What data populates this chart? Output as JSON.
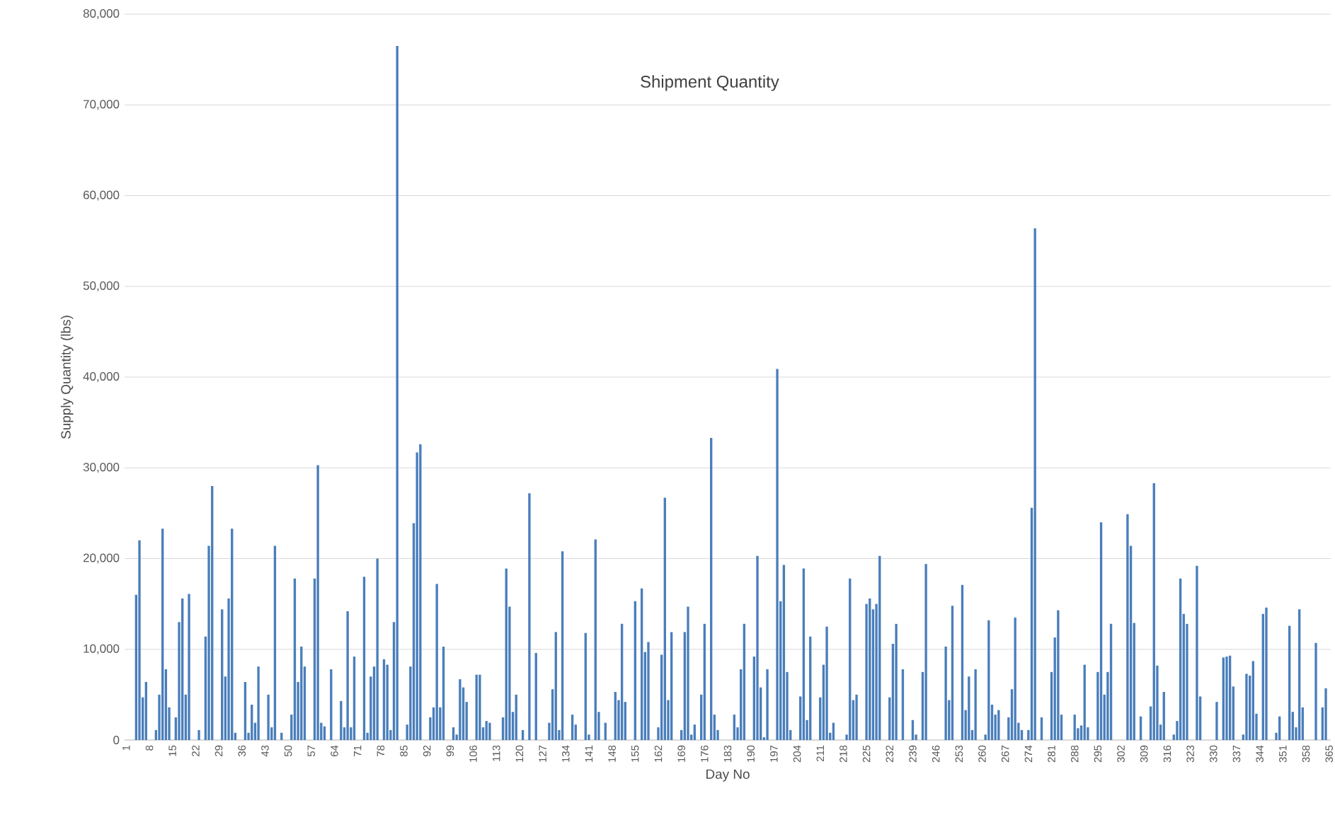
{
  "chart_data": {
    "type": "bar",
    "title": "Shipment Quantity",
    "xlabel": "Day No",
    "ylabel": "Supply Quantity (lbs)",
    "color": "#4a7ebb",
    "grid": "y",
    "ylim": [
      0,
      80000
    ],
    "yticks": [
      0,
      {
        "value": 10000,
        "label": "10,000"
      },
      {
        "value": 20000,
        "label": "20,000"
      },
      {
        "value": 30000,
        "label": "30,000"
      },
      {
        "value": 40000,
        "label": "40,000"
      },
      {
        "value": 50000,
        "label": "50,000"
      },
      {
        "value": 60000,
        "label": "60,000"
      },
      {
        "value": 70000,
        "label": "70,000"
      },
      {
        "value": 80000,
        "label": "80,000"
      }
    ],
    "categories": [
      "1",
      null,
      null,
      null,
      null,
      null,
      null,
      "8",
      null,
      null,
      null,
      null,
      null,
      null,
      "15",
      null,
      null,
      null,
      null,
      null,
      null,
      "22",
      null,
      null,
      null,
      null,
      null,
      null,
      "29",
      null,
      null,
      null,
      null,
      null,
      null,
      "36",
      null,
      null,
      null,
      null,
      null,
      null,
      "43",
      null,
      null,
      null,
      null,
      null,
      null,
      "50",
      null,
      null,
      null,
      null,
      null,
      null,
      "57",
      null,
      null,
      null,
      null,
      null,
      null,
      "64",
      null,
      null,
      null,
      null,
      null,
      null,
      "71",
      null,
      null,
      null,
      null,
      null,
      null,
      "78",
      null,
      null,
      null,
      null,
      null,
      null,
      "85",
      null,
      null,
      null,
      null,
      null,
      null,
      "92",
      null,
      null,
      null,
      null,
      null,
      null,
      "99",
      null,
      null,
      null,
      null,
      null,
      null,
      "106",
      null,
      null,
      null,
      null,
      null,
      null,
      "113",
      null,
      null,
      null,
      null,
      null,
      null,
      "120",
      null,
      null,
      null,
      null,
      null,
      null,
      "127",
      null,
      null,
      null,
      null,
      null,
      null,
      "134",
      null,
      null,
      null,
      null,
      null,
      null,
      "141",
      null,
      null,
      null,
      null,
      null,
      null,
      "148",
      null,
      null,
      null,
      null,
      null,
      null,
      "155",
      null,
      null,
      null,
      null,
      null,
      null,
      "162",
      null,
      null,
      null,
      null,
      null,
      null,
      "169",
      null,
      null,
      null,
      null,
      null,
      null,
      "176",
      null,
      null,
      null,
      null,
      null,
      null,
      "183",
      null,
      null,
      null,
      null,
      null,
      null,
      "190",
      null,
      null,
      null,
      null,
      null,
      null,
      "197",
      null,
      null,
      null,
      null,
      null,
      null,
      "204",
      null,
      null,
      null,
      null,
      null,
      null,
      "211",
      null,
      null,
      null,
      null,
      null,
      null,
      "218",
      null,
      null,
      null,
      null,
      null,
      null,
      "225",
      null,
      null,
      null,
      null,
      null,
      null,
      "232",
      null,
      null,
      null,
      null,
      null,
      null,
      "239",
      null,
      null,
      null,
      null,
      null,
      null,
      "246",
      null,
      null,
      null,
      null,
      null,
      null,
      "253",
      null,
      null,
      null,
      null,
      null,
      null,
      "260",
      null,
      null,
      null,
      null,
      null,
      null,
      "267",
      null,
      null,
      null,
      null,
      null,
      null,
      "274",
      null,
      null,
      null,
      null,
      null,
      null,
      "281",
      null,
      null,
      null,
      null,
      null,
      null,
      "288",
      null,
      null,
      null,
      null,
      null,
      null,
      "295",
      null,
      null,
      null,
      null,
      null,
      null,
      "302",
      null,
      null,
      null,
      null,
      null,
      null,
      "309",
      null,
      null,
      null,
      null,
      null,
      null,
      "316",
      null,
      null,
      null,
      null,
      null,
      null,
      "323",
      null,
      null,
      null,
      null,
      null,
      null,
      "330",
      null,
      null,
      null,
      null,
      null,
      null,
      "337",
      null,
      null,
      null,
      null,
      null,
      null,
      "344",
      null,
      null,
      null,
      null,
      null,
      null,
      "351",
      null,
      null,
      null,
      null,
      null,
      null,
      "358",
      null,
      null,
      null,
      null,
      null,
      null,
      "365"
    ],
    "values": [
      0,
      0,
      0,
      16000,
      22000,
      4700,
      6400,
      0,
      0,
      1100,
      5000,
      23300,
      7800,
      3600,
      0,
      2500,
      13000,
      15600,
      5000,
      16100,
      0,
      0,
      1100,
      0,
      11400,
      21400,
      28000,
      0,
      0,
      14400,
      7000,
      15600,
      23300,
      800,
      0,
      0,
      6400,
      800,
      3900,
      1900,
      8100,
      0,
      0,
      5000,
      1400,
      21400,
      0,
      800,
      0,
      0,
      2800,
      17800,
      6400,
      10300,
      8100,
      0,
      0,
      17800,
      30300,
      1900,
      1500,
      0,
      7800,
      0,
      0,
      4300,
      1400,
      14200,
      1400,
      9200,
      0,
      0,
      18000,
      800,
      7000,
      8100,
      20000,
      0,
      8900,
      8300,
      1100,
      13000,
      76500,
      0,
      0,
      1700,
      8100,
      23900,
      31700,
      32600,
      0,
      0,
      2500,
      3600,
      17200,
      3600,
      10300,
      0,
      0,
      1400,
      600,
      6700,
      5800,
      4200,
      0,
      0,
      7200,
      7200,
      1400,
      2100,
      1900,
      0,
      0,
      0,
      2500,
      18900,
      14700,
      3100,
      5000,
      0,
      1100,
      0,
      27200,
      0,
      9600,
      0,
      0,
      0,
      1900,
      5600,
      11900,
      1100,
      20800,
      0,
      0,
      2800,
      1700,
      0,
      0,
      11800,
      600,
      0,
      22100,
      3100,
      0,
      1900,
      0,
      0,
      5300,
      4400,
      12800,
      4200,
      0,
      0,
      15300,
      0,
      16700,
      9700,
      10800,
      0,
      0,
      1400,
      9400,
      26700,
      4400,
      11900,
      0,
      0,
      1100,
      11900,
      14700,
      600,
      1700,
      0,
      5000,
      12800,
      0,
      33300,
      2800,
      1100,
      0,
      0,
      0,
      0,
      2800,
      1400,
      7800,
      12800,
      0,
      0,
      9200,
      20300,
      5800,
      300,
      7800,
      0,
      0,
      40900,
      15300,
      19300,
      7500,
      1100,
      0,
      0,
      4800,
      18900,
      2200,
      11400,
      0,
      0,
      4700,
      8300,
      12500,
      800,
      1900,
      0,
      0,
      0,
      600,
      17800,
      4400,
      5000,
      0,
      0,
      15000,
      15600,
      14400,
      15000,
      20300,
      0,
      0,
      4700,
      10600,
      12800,
      0,
      7800,
      0,
      0,
      2200,
      600,
      0,
      7500,
      19400,
      0,
      0,
      0,
      0,
      0,
      10300,
      4400,
      14800,
      0,
      0,
      17100,
      3300,
      7000,
      1100,
      7800,
      0,
      0,
      600,
      13200,
      3900,
      2800,
      3300,
      0,
      0,
      2500,
      5600,
      13500,
      1900,
      1100,
      0,
      1100,
      25600,
      56400,
      0,
      2500,
      0,
      0,
      7500,
      11300,
      14300,
      2800,
      0,
      0,
      0,
      2800,
      1300,
      1600,
      8300,
      1400,
      0,
      0,
      7500,
      24000,
      5000,
      7500,
      12800,
      0,
      0,
      0,
      0,
      24900,
      21400,
      12900,
      0,
      2600,
      0,
      0,
      3700,
      28300,
      8200,
      1700,
      5300,
      0,
      0,
      600,
      2100,
      17800,
      13900,
      12800,
      0,
      0,
      19200,
      4800,
      0,
      0,
      0,
      0,
      4200,
      0,
      9100,
      9200,
      9300,
      5900,
      0,
      0,
      600,
      7300,
      7100,
      8700,
      2900,
      0,
      13900,
      14600,
      0,
      0,
      800,
      2600,
      0,
      0,
      12600,
      3100,
      1400,
      14400,
      3600,
      0,
      0,
      0,
      10700,
      0,
      3600,
      5700,
      0
    ]
  }
}
